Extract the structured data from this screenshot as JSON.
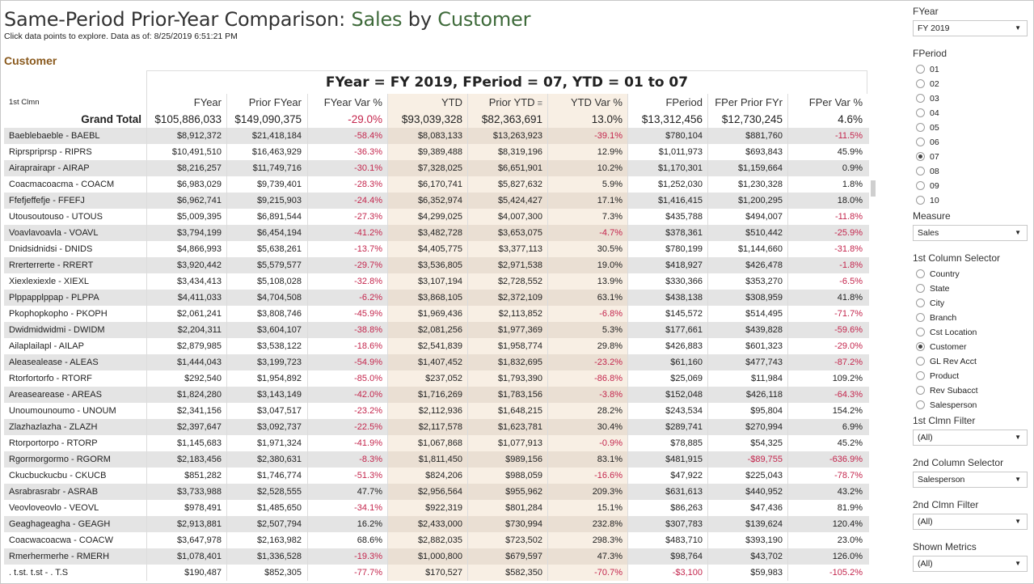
{
  "title": {
    "prefix": "Same-Period Prior-Year Comparison: ",
    "measure": "Sales",
    "mid": " by ",
    "dim": "Customer"
  },
  "subtitle": "Click data points to explore. Data as of: 8/25/2019 6:51:21 PM",
  "section_label": "Customer",
  "table": {
    "banner": "FYear = FY 2019,  FPeriod = 07,  YTD = 01 to 07",
    "dim_header": "1st Clmn",
    "columns": [
      "FYear",
      "Prior FYear",
      "FYear Var %",
      "YTD",
      "Prior YTD",
      "YTD Var %",
      "FPeriod",
      "FPer Prior FYr",
      "FPer Var %"
    ],
    "sort_icon": "sort-descending-icon",
    "total": {
      "name": "Grand Total",
      "vals": [
        "$105,886,033",
        "$149,090,375",
        "-29.0%",
        "$93,039,328",
        "$82,363,691",
        "13.0%",
        "$13,312,456",
        "$12,730,245",
        "4.6%"
      ]
    },
    "rows": [
      {
        "name": "Baeblebaeble - BAEBL",
        "vals": [
          "$8,912,372",
          "$21,418,184",
          "-58.4%",
          "$8,083,133",
          "$13,263,923",
          "-39.1%",
          "$780,104",
          "$881,760",
          "-11.5%"
        ]
      },
      {
        "name": "Riprspriprsp - RIPRS",
        "vals": [
          "$10,491,510",
          "$16,463,929",
          "-36.3%",
          "$9,389,488",
          "$8,319,196",
          "12.9%",
          "$1,011,973",
          "$693,843",
          "45.9%"
        ]
      },
      {
        "name": "Airaprairapr - AIRAP",
        "vals": [
          "$8,216,257",
          "$11,749,716",
          "-30.1%",
          "$7,328,025",
          "$6,651,901",
          "10.2%",
          "$1,170,301",
          "$1,159,664",
          "0.9%"
        ]
      },
      {
        "name": "Coacmacoacma - COACM",
        "vals": [
          "$6,983,029",
          "$9,739,401",
          "-28.3%",
          "$6,170,741",
          "$5,827,632",
          "5.9%",
          "$1,252,030",
          "$1,230,328",
          "1.8%"
        ]
      },
      {
        "name": "Ffefjeffefje - FFEFJ",
        "vals": [
          "$6,962,741",
          "$9,215,903",
          "-24.4%",
          "$6,352,974",
          "$5,424,427",
          "17.1%",
          "$1,416,415",
          "$1,200,295",
          "18.0%"
        ]
      },
      {
        "name": "Utousoutouso - UTOUS",
        "vals": [
          "$5,009,395",
          "$6,891,544",
          "-27.3%",
          "$4,299,025",
          "$4,007,300",
          "7.3%",
          "$435,788",
          "$494,007",
          "-11.8%"
        ]
      },
      {
        "name": "Voavlavoavla - VOAVL",
        "vals": [
          "$3,794,199",
          "$6,454,194",
          "-41.2%",
          "$3,482,728",
          "$3,653,075",
          "-4.7%",
          "$378,361",
          "$510,442",
          "-25.9%"
        ]
      },
      {
        "name": "Dnidsidnidsi - DNIDS",
        "vals": [
          "$4,866,993",
          "$5,638,261",
          "-13.7%",
          "$4,405,775",
          "$3,377,113",
          "30.5%",
          "$780,199",
          "$1,144,660",
          "-31.8%"
        ]
      },
      {
        "name": "Rrerterrerte - RRERT",
        "vals": [
          "$3,920,442",
          "$5,579,577",
          "-29.7%",
          "$3,536,805",
          "$2,971,538",
          "19.0%",
          "$418,927",
          "$426,478",
          "-1.8%"
        ]
      },
      {
        "name": "Xiexlexiexle - XIEXL",
        "vals": [
          "$3,434,413",
          "$5,108,028",
          "-32.8%",
          "$3,107,194",
          "$2,728,552",
          "13.9%",
          "$330,366",
          "$353,270",
          "-6.5%"
        ]
      },
      {
        "name": "Plppapplppap - PLPPA",
        "vals": [
          "$4,411,033",
          "$4,704,508",
          "-6.2%",
          "$3,868,105",
          "$2,372,109",
          "63.1%",
          "$438,138",
          "$308,959",
          "41.8%"
        ]
      },
      {
        "name": "Pkophopkopho - PKOPH",
        "vals": [
          "$2,061,241",
          "$3,808,746",
          "-45.9%",
          "$1,969,436",
          "$2,113,852",
          "-6.8%",
          "$145,572",
          "$514,495",
          "-71.7%"
        ]
      },
      {
        "name": "Dwidmidwidmi - DWIDM",
        "vals": [
          "$2,204,311",
          "$3,604,107",
          "-38.8%",
          "$2,081,256",
          "$1,977,369",
          "5.3%",
          "$177,661",
          "$439,828",
          "-59.6%"
        ]
      },
      {
        "name": "Ailaplailapl - AILAP",
        "vals": [
          "$2,879,985",
          "$3,538,122",
          "-18.6%",
          "$2,541,839",
          "$1,958,774",
          "29.8%",
          "$426,883",
          "$601,323",
          "-29.0%"
        ]
      },
      {
        "name": "Aleasealease - ALEAS",
        "vals": [
          "$1,444,043",
          "$3,199,723",
          "-54.9%",
          "$1,407,452",
          "$1,832,695",
          "-23.2%",
          "$61,160",
          "$477,743",
          "-87.2%"
        ]
      },
      {
        "name": "Rtorfortorfo - RTORF",
        "vals": [
          "$292,540",
          "$1,954,892",
          "-85.0%",
          "$237,052",
          "$1,793,390",
          "-86.8%",
          "$25,069",
          "$11,984",
          "109.2%"
        ]
      },
      {
        "name": "Areasearease - AREAS",
        "vals": [
          "$1,824,280",
          "$3,143,149",
          "-42.0%",
          "$1,716,269",
          "$1,783,156",
          "-3.8%",
          "$152,048",
          "$426,118",
          "-64.3%"
        ]
      },
      {
        "name": "Unoumounoumo - UNOUM",
        "vals": [
          "$2,341,156",
          "$3,047,517",
          "-23.2%",
          "$2,112,936",
          "$1,648,215",
          "28.2%",
          "$243,534",
          "$95,804",
          "154.2%"
        ]
      },
      {
        "name": "Zlazhazlazha - ZLAZH",
        "vals": [
          "$2,397,647",
          "$3,092,737",
          "-22.5%",
          "$2,117,578",
          "$1,623,781",
          "30.4%",
          "$289,741",
          "$270,994",
          "6.9%"
        ]
      },
      {
        "name": "Rtorportorpo - RTORP",
        "vals": [
          "$1,145,683",
          "$1,971,324",
          "-41.9%",
          "$1,067,868",
          "$1,077,913",
          "-0.9%",
          "$78,885",
          "$54,325",
          "45.2%"
        ]
      },
      {
        "name": "Rgormorgormo - RGORM",
        "vals": [
          "$2,183,456",
          "$2,380,631",
          "-8.3%",
          "$1,811,450",
          "$989,156",
          "83.1%",
          "$481,915",
          "-$89,755",
          "-636.9%"
        ]
      },
      {
        "name": "Ckucbuckucbu - CKUCB",
        "vals": [
          "$851,282",
          "$1,746,774",
          "-51.3%",
          "$824,206",
          "$988,059",
          "-16.6%",
          "$47,922",
          "$225,043",
          "-78.7%"
        ]
      },
      {
        "name": "Asrabrasrabr - ASRAB",
        "vals": [
          "$3,733,988",
          "$2,528,555",
          "47.7%",
          "$2,956,564",
          "$955,962",
          "209.3%",
          "$631,613",
          "$440,952",
          "43.2%"
        ]
      },
      {
        "name": "Veovloveovlo - VEOVL",
        "vals": [
          "$978,491",
          "$1,485,650",
          "-34.1%",
          "$922,319",
          "$801,284",
          "15.1%",
          "$86,263",
          "$47,436",
          "81.9%"
        ]
      },
      {
        "name": "Geaghageagha - GEAGH",
        "vals": [
          "$2,913,881",
          "$2,507,794",
          "16.2%",
          "$2,433,000",
          "$730,994",
          "232.8%",
          "$307,783",
          "$139,624",
          "120.4%"
        ]
      },
      {
        "name": "Coacwacoacwa - COACW",
        "vals": [
          "$3,647,978",
          "$2,163,982",
          "68.6%",
          "$2,882,035",
          "$723,502",
          "298.3%",
          "$483,710",
          "$393,190",
          "23.0%"
        ]
      },
      {
        "name": "Rmerhermerhe - RMERH",
        "vals": [
          "$1,078,401",
          "$1,336,528",
          "-19.3%",
          "$1,000,800",
          "$679,597",
          "47.3%",
          "$98,764",
          "$43,702",
          "126.0%"
        ]
      },
      {
        "name": ". t.st. t.st - . T.S",
        "vals": [
          "$190,487",
          "$852,305",
          "-77.7%",
          "$170,527",
          "$582,350",
          "-70.7%",
          "-$3,100",
          "$59,983",
          "-105.2%"
        ]
      }
    ]
  },
  "sidebar": {
    "fyear": {
      "label": "FYear",
      "value": "FY 2019"
    },
    "fperiod": {
      "label": "FPeriod",
      "options": [
        "01",
        "02",
        "03",
        "04",
        "05",
        "06",
        "07",
        "08",
        "09",
        "10"
      ],
      "selected": "07"
    },
    "measure": {
      "label": "Measure",
      "value": "Sales"
    },
    "col1_selector": {
      "label": "1st Column Selector",
      "options": [
        "Country",
        "State",
        "City",
        "Branch",
        "Cst Location",
        "Customer",
        "GL Rev Acct",
        "Product",
        "Rev Subacct",
        "Salesperson"
      ],
      "selected": "Customer"
    },
    "col1_filter": {
      "label": "1st Clmn Filter",
      "value": "(All)"
    },
    "col2_selector": {
      "label": "2nd Column Selector",
      "value": "Salesperson"
    },
    "col2_filter": {
      "label": "2nd Clmn Filter",
      "value": "(All)"
    },
    "shown_metrics": {
      "label": "Shown Metrics",
      "value": "(All)"
    }
  },
  "colors": {
    "title_highlight": "#3e6a3a",
    "section_label": "#8a5a1e",
    "negative": "#c4264d",
    "ytd_band": "#f8efe4",
    "alt_row": "#e4e4e4"
  }
}
